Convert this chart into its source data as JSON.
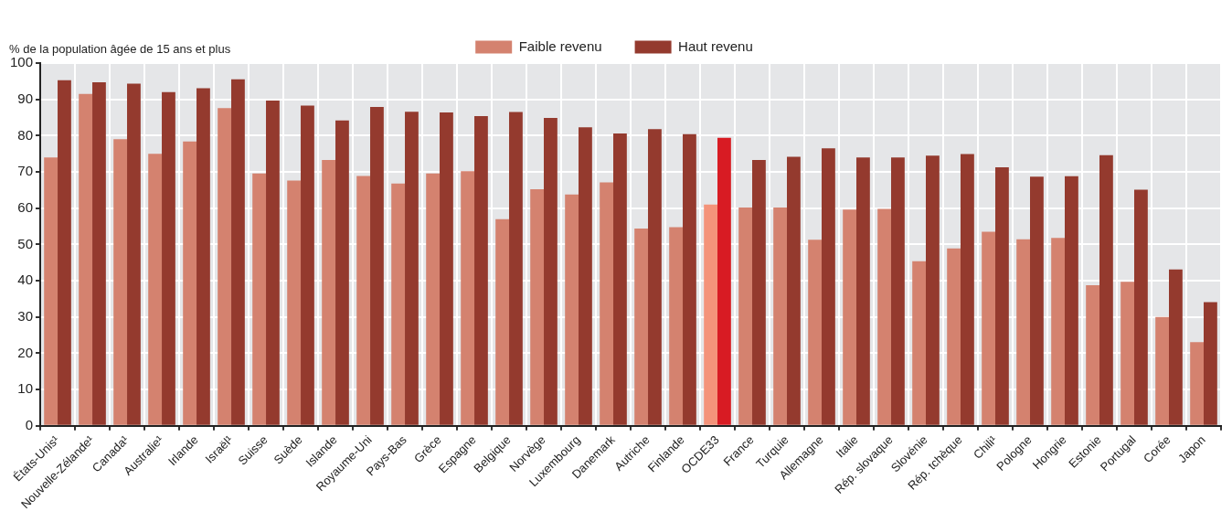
{
  "chart_data": {
    "type": "bar",
    "ylabel": "% de la population âgée de 15 ans et plus",
    "categories": [
      "États-Unis¹",
      "Nouvelle-Zélande¹",
      "Canada¹",
      "Australie¹",
      "Irlande",
      "Israël¹",
      "Suisse",
      "Suède",
      "Islande",
      "Royaume-Uni",
      "Pays-Bas",
      "Grèce",
      "Espagne",
      "Belgique",
      "Norvège",
      "Luxembourg",
      "Danemark",
      "Autriche",
      "Finlande",
      "OCDE33",
      "France",
      "Turquie",
      "Allemagne",
      "Italie",
      "Rép. slovaque",
      "Slovénie",
      "Rép. tchèque",
      "Chili¹",
      "Pologne",
      "Hongrie",
      "Estonie",
      "Portugal",
      "Corée",
      "Japon"
    ],
    "series": [
      {
        "name": "Faible revenu",
        "color": "#d4826f",
        "colors": [
          "#d4826f",
          "#d4826f",
          "#d4826f",
          "#d4826f",
          "#d4826f",
          "#d4826f",
          "#d4826f",
          "#d4826f",
          "#d4826f",
          "#d4826f",
          "#d4826f",
          "#d4826f",
          "#d4826f",
          "#d4826f",
          "#d4826f",
          "#d4826f",
          "#d4826f",
          "#d4826f",
          "#d4826f",
          "#f4937a",
          "#d4826f",
          "#d4826f",
          "#d4826f",
          "#d4826f",
          "#d4826f",
          "#d4826f",
          "#d4826f",
          "#d4826f",
          "#d4826f",
          "#d4826f",
          "#d4826f",
          "#d4826f",
          "#d4826f",
          "#d4826f"
        ],
        "values": [
          74,
          91.5,
          79,
          75,
          78.4,
          87.6,
          69.6,
          67.6,
          73.3,
          68.9,
          66.8,
          69.6,
          70.2,
          57,
          65.2,
          63.8,
          67.1,
          54.4,
          54.8,
          61,
          60.2,
          60.2,
          51.3,
          59.6,
          59.8,
          45.4,
          48.9,
          53.5,
          51.4,
          51.8,
          38.8,
          39.7,
          30,
          23.1
        ]
      },
      {
        "name": "Haut revenu",
        "color": "#943a2e",
        "colors": [
          "#943a2e",
          "#943a2e",
          "#943a2e",
          "#943a2e",
          "#943a2e",
          "#943a2e",
          "#943a2e",
          "#943a2e",
          "#943a2e",
          "#943a2e",
          "#943a2e",
          "#943a2e",
          "#943a2e",
          "#943a2e",
          "#943a2e",
          "#943a2e",
          "#943a2e",
          "#943a2e",
          "#943a2e",
          "#d81b23",
          "#943a2e",
          "#943a2e",
          "#943a2e",
          "#943a2e",
          "#943a2e",
          "#943a2e",
          "#943a2e",
          "#943a2e",
          "#943a2e",
          "#943a2e",
          "#943a2e",
          "#943a2e",
          "#943a2e",
          "#943a2e"
        ],
        "values": [
          95.3,
          94.7,
          94.3,
          92,
          93.1,
          95.5,
          89.7,
          88.3,
          84.2,
          87.9,
          86.6,
          86.4,
          85.4,
          86.5,
          84.9,
          82.3,
          80.6,
          81.8,
          80.4,
          79.4,
          73.3,
          74.2,
          76.5,
          74,
          74,
          74.5,
          74.9,
          71.3,
          68.7,
          68.8,
          74.6,
          65.1,
          43.1,
          34.1
        ]
      }
    ],
    "ylim": [
      0,
      100
    ],
    "yticks": [
      0,
      10,
      20,
      30,
      40,
      50,
      60,
      70,
      80,
      90,
      100
    ],
    "grid": true,
    "legend": "top"
  }
}
